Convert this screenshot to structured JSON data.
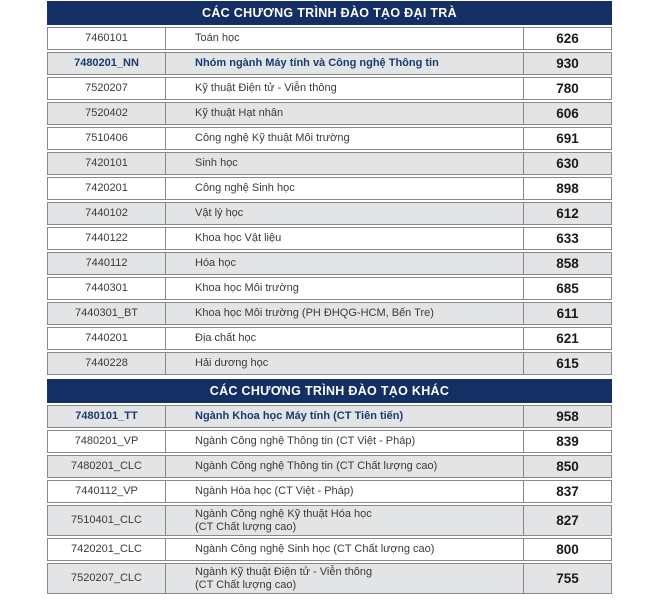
{
  "colors": {
    "header_bg": "#132f63",
    "row_bg": "#ffffff",
    "row_alt_bg": "#e3e4e6",
    "border": "#888888",
    "text": "#3a3a3a",
    "score_text": "#1a1a1a",
    "highlight_text": "#1b3a70"
  },
  "table": {
    "sections": [
      {
        "header": "CÁC CHƯƠNG TRÌNH ĐÀO TẠO ĐẠI TRÀ",
        "rows": [
          {
            "code": "7460101",
            "name": "Toán học",
            "score": "626",
            "highlight": false
          },
          {
            "code": "7480201_NN",
            "name": "Nhóm ngành Máy tính và Công nghệ Thông tin",
            "score": "930",
            "highlight": true
          },
          {
            "code": "7520207",
            "name": "Kỹ thuật Điện tử - Viễn thông",
            "score": "780",
            "highlight": false
          },
          {
            "code": "7520402",
            "name": "Kỹ thuật Hạt nhân",
            "score": "606",
            "highlight": false
          },
          {
            "code": "7510406",
            "name": "Công nghệ Kỹ thuật Môi trường",
            "score": "691",
            "highlight": false
          },
          {
            "code": "7420101",
            "name": "Sinh học",
            "score": "630",
            "highlight": false
          },
          {
            "code": "7420201",
            "name": "Công nghệ Sinh học",
            "score": "898",
            "highlight": false
          },
          {
            "code": "7440102",
            "name": "Vật lý học",
            "score": "612",
            "highlight": false
          },
          {
            "code": "7440122",
            "name": "Khoa học Vật liệu",
            "score": "633",
            "highlight": false
          },
          {
            "code": "7440112",
            "name": "Hóa học",
            "score": "858",
            "highlight": false
          },
          {
            "code": "7440301",
            "name": "Khoa học Môi trường",
            "score": "685",
            "highlight": false
          },
          {
            "code": "7440301_BT",
            "name": "Khoa học Môi trường (PH ĐHQG-HCM, Bến Tre)",
            "score": "611",
            "highlight": false
          },
          {
            "code": "7440201",
            "name": "Địa chất học",
            "score": "621",
            "highlight": false
          },
          {
            "code": "7440228",
            "name": "Hải dương học",
            "score": "615",
            "highlight": false
          }
        ]
      },
      {
        "header": "CÁC CHƯƠNG TRÌNH ĐÀO TẠO KHÁC",
        "rows": [
          {
            "code": "7480101_TT",
            "name": "Ngành Khoa học Máy tính (CT Tiên tiến)",
            "score": "958",
            "highlight": true
          },
          {
            "code": "7480201_VP",
            "name": "Ngành Công nghệ Thông tin (CT Việt - Pháp)",
            "score": "839",
            "highlight": false
          },
          {
            "code": "7480201_CLC",
            "name": "Ngành Công nghệ Thông tin (CT Chất lượng cao)",
            "score": "850",
            "highlight": false
          },
          {
            "code": "7440112_VP",
            "name": "Ngành Hóa học (CT Việt - Pháp)",
            "score": "837",
            "highlight": false
          },
          {
            "code": "7510401_CLC",
            "name": "Ngành Công nghệ Kỹ thuật Hóa học",
            "name2": "(CT Chất lượng cao)",
            "score": "827",
            "highlight": false
          },
          {
            "code": "7420201_CLC",
            "name": "Ngành Công nghệ Sinh học (CT Chất lượng cao)",
            "score": "800",
            "highlight": false
          },
          {
            "code": "7520207_CLC",
            "name": "Ngành Kỹ thuật Điện tử - Viễn thông",
            "name2": "(CT Chất lượng cao)",
            "score": "755",
            "highlight": false
          }
        ]
      }
    ]
  }
}
